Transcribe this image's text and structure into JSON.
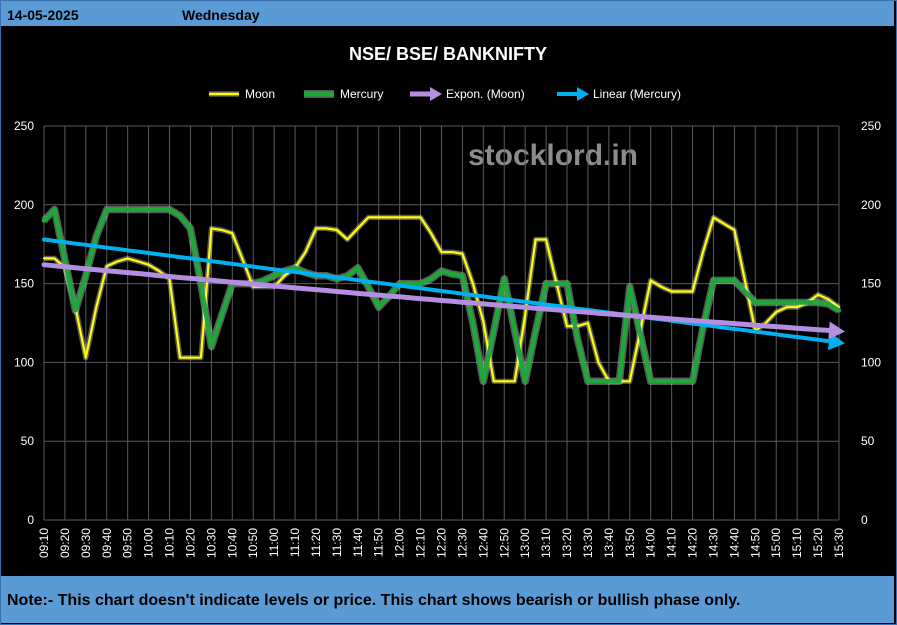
{
  "header": {
    "date": "14-05-2025",
    "day": "Wednesday"
  },
  "footer": {
    "note": "Note:- This chart doesn't indicate levels or price. This chart shows bearish or bullish phase only."
  },
  "watermark": "stocklord.in",
  "colors": {
    "moon": "#ffff00",
    "mercury": "#1fa83a",
    "expon": "#b48ee0",
    "linear": "#00b0f0",
    "header_bg": "#5b9bd5"
  },
  "chart_data": {
    "type": "line",
    "title": "NSE/ BSE/ BANKNIFTY",
    "ylim": [
      0,
      250
    ],
    "yticks": [
      0,
      50,
      100,
      150,
      200,
      250
    ],
    "grid": true,
    "legend_position": "top",
    "categories": [
      "09:10",
      "09:15",
      "09:20",
      "09:25",
      "09:30",
      "09:35",
      "09:40",
      "09:45",
      "09:50",
      "09:55",
      "10:00",
      "10:05",
      "10:10",
      "10:15",
      "10:20",
      "10:25",
      "10:30",
      "10:35",
      "10:40",
      "10:45",
      "10:50",
      "10:55",
      "11:00",
      "11:05",
      "11:10",
      "11:15",
      "11:20",
      "11:25",
      "11:30",
      "11:35",
      "11:40",
      "11:45",
      "11:50",
      "11:55",
      "12:00",
      "12:05",
      "12:10",
      "12:15",
      "12:20",
      "12:25",
      "12:30",
      "12:35",
      "12:40",
      "12:45",
      "12:50",
      "12:55",
      "13:00",
      "13:05",
      "13:10",
      "13:15",
      "13:20",
      "13:25",
      "13:30",
      "13:35",
      "13:40",
      "13:45",
      "13:50",
      "13:55",
      "14:00",
      "14:05",
      "14:10",
      "14:15",
      "14:20",
      "14:25",
      "14:30",
      "14:35",
      "14:40",
      "14:45",
      "14:50",
      "14:55",
      "15:00",
      "15:05",
      "15:10",
      "15:15",
      "15:20",
      "15:25",
      "15:30"
    ],
    "tick_labels": [
      "09:10",
      "09:20",
      "09:30",
      "09:40",
      "09:50",
      "10:00",
      "10:10",
      "10:20",
      "10:30",
      "10:40",
      "10:50",
      "11:00",
      "11:10",
      "11:20",
      "11:30",
      "11:40",
      "11:50",
      "12:00",
      "12:10",
      "12:20",
      "12:30",
      "12:40",
      "12:50",
      "13:00",
      "13:10",
      "13:20",
      "13:30",
      "13:40",
      "13:50",
      "14:00",
      "14:10",
      "14:20",
      "14:30",
      "14:40",
      "14:50",
      "15:00",
      "15:10",
      "15:20",
      "15:30"
    ],
    "series": [
      {
        "name": "Moon",
        "values": [
          166,
          166,
          160,
          135,
          103,
          135,
          161,
          164,
          166,
          164,
          162,
          158,
          153,
          103,
          103,
          103,
          185,
          184,
          182,
          165,
          148,
          148,
          148,
          155,
          160,
          170,
          185,
          185,
          184,
          178,
          185,
          192,
          192,
          192,
          192,
          192,
          192,
          182,
          170,
          170,
          169,
          150,
          126,
          88,
          88,
          88,
          130,
          178,
          178,
          150,
          123,
          123,
          125,
          100,
          88,
          88,
          88,
          120,
          152,
          148,
          145,
          145,
          145,
          170,
          192,
          188,
          184,
          152,
          120,
          125,
          132,
          135,
          135,
          138,
          143,
          140,
          135
        ]
      },
      {
        "name": "Mercury",
        "values": [
          190,
          197,
          165,
          133,
          155,
          180,
          197,
          197,
          197,
          197,
          197,
          197,
          197,
          193,
          185,
          150,
          110,
          130,
          150,
          150,
          150,
          152,
          155,
          158,
          160,
          157,
          155,
          155,
          153,
          155,
          160,
          148,
          135,
          142,
          150,
          150,
          150,
          153,
          158,
          156,
          155,
          125,
          88,
          120,
          153,
          120,
          88,
          120,
          150,
          150,
          150,
          115,
          88,
          88,
          88,
          88,
          148,
          118,
          88,
          88,
          88,
          88,
          88,
          122,
          152,
          152,
          152,
          145,
          138,
          138,
          138,
          138,
          138,
          138,
          138,
          137,
          133
        ]
      },
      {
        "name": "Expon. (Moon)",
        "values": [
          162,
          161.3,
          160.7,
          160.1,
          159.4,
          158.8,
          158.2,
          157.6,
          157,
          156.4,
          155.8,
          155.1,
          154.5,
          153.9,
          153.3,
          152.7,
          152.1,
          151.5,
          150.9,
          150.3,
          149.7,
          149.1,
          148.5,
          147.9,
          147.3,
          146.7,
          146.2,
          145.6,
          145,
          144.4,
          143.8,
          143.3,
          142.7,
          142.1,
          141.6,
          141,
          140.4,
          139.9,
          139.3,
          138.8,
          138.2,
          137.7,
          137.1,
          136.6,
          136,
          135.5,
          135,
          134.4,
          133.9,
          133.3,
          132.8,
          132.3,
          131.8,
          131.2,
          130.7,
          130.2,
          129.7,
          129.2,
          128.6,
          128.1,
          127.6,
          127.1,
          126.6,
          126.1,
          125.6,
          125.1,
          124.6,
          124.1,
          123.6,
          123.1,
          122.7,
          122.2,
          121.7,
          121.2,
          120.7,
          120.3,
          119.8
        ],
        "arrow": true
      },
      {
        "name": "Linear (Mercury)",
        "values": [
          178,
          177.1,
          176.3,
          175.4,
          174.6,
          173.7,
          172.8,
          172,
          171.1,
          170.3,
          169.4,
          168.5,
          167.7,
          166.8,
          166,
          165.1,
          164.2,
          163.4,
          162.5,
          161.7,
          160.8,
          159.9,
          159.1,
          158.2,
          157.4,
          156.5,
          155.6,
          154.8,
          153.9,
          153.1,
          152.2,
          151.3,
          150.5,
          149.6,
          148.8,
          147.9,
          147,
          146.2,
          145.3,
          144.5,
          143.6,
          142.7,
          141.9,
          141,
          140.2,
          139.3,
          138.4,
          137.6,
          136.7,
          135.9,
          135,
          134.1,
          133.3,
          132.4,
          131.6,
          130.7,
          129.8,
          129,
          128.1,
          127.3,
          126.4,
          125.5,
          124.7,
          123.8,
          123,
          122.1,
          121.2,
          120.4,
          119.5,
          118.7,
          117.8,
          116.9,
          116.1,
          115.2,
          114.4,
          113.5,
          112.6
        ],
        "arrow": true
      }
    ]
  }
}
